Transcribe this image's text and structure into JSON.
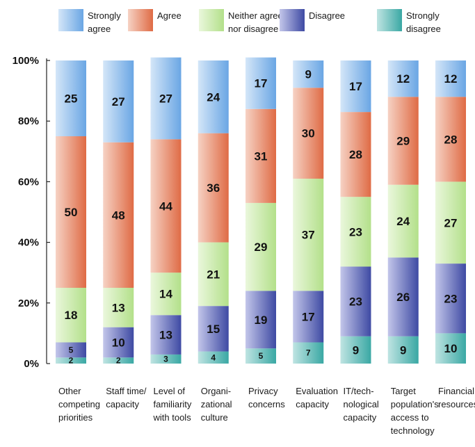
{
  "chart_data": {
    "type": "bar",
    "stacked": true,
    "orientation": "vertical",
    "categories": [
      [
        "Other",
        "competing",
        "priorities"
      ],
      [
        "Staff time/",
        "capacity"
      ],
      [
        "Level of",
        "familiarity",
        "with tools"
      ],
      [
        "Organi-",
        "zational",
        "culture"
      ],
      [
        "Privacy",
        "concerns"
      ],
      [
        "Evaluation",
        "capacity"
      ],
      [
        "IT/tech-",
        "nological",
        "capacity"
      ],
      [
        "Target",
        "population's",
        "access to",
        "technology"
      ],
      [
        "Financial",
        "resources"
      ]
    ],
    "series": [
      {
        "name": [
          "Strongly",
          "disagree"
        ],
        "key": "strongly-disagree",
        "color": "#3aa8a4",
        "light": "#bfe4e2",
        "values": [
          2,
          2,
          3,
          4,
          5,
          7,
          9,
          9,
          10
        ]
      },
      {
        "name": [
          "Disagree"
        ],
        "key": "disagree",
        "color": "#3e4aa3",
        "light": "#c3c6ea",
        "values": [
          5,
          10,
          13,
          15,
          19,
          17,
          23,
          26,
          23
        ]
      },
      {
        "name": [
          "Neither agree",
          "nor disagree"
        ],
        "key": "neither",
        "color": "#b3e08a",
        "light": "#eaf7dc",
        "values": [
          18,
          13,
          14,
          21,
          29,
          37,
          23,
          24,
          27
        ]
      },
      {
        "name": [
          "Agree"
        ],
        "key": "agree",
        "color": "#df6b45",
        "light": "#f6d2c4",
        "values": [
          50,
          48,
          44,
          36,
          31,
          30,
          28,
          29,
          28
        ]
      },
      {
        "name": [
          "Strongly",
          "agree"
        ],
        "key": "strongly-agree",
        "color": "#6aa6e4",
        "light": "#d4e6f8",
        "values": [
          25,
          27,
          27,
          24,
          17,
          9,
          17,
          12,
          12
        ]
      }
    ],
    "legend_order": [
      "strongly-agree",
      "agree",
      "neither",
      "disagree",
      "strongly-disagree"
    ],
    "y_ticks": [
      "0%",
      "20%",
      "40%",
      "60%",
      "80%",
      "100%"
    ],
    "ylim": [
      0,
      100
    ],
    "grid": false,
    "legend_position": "top",
    "title": "",
    "xlabel": "",
    "ylabel": ""
  }
}
